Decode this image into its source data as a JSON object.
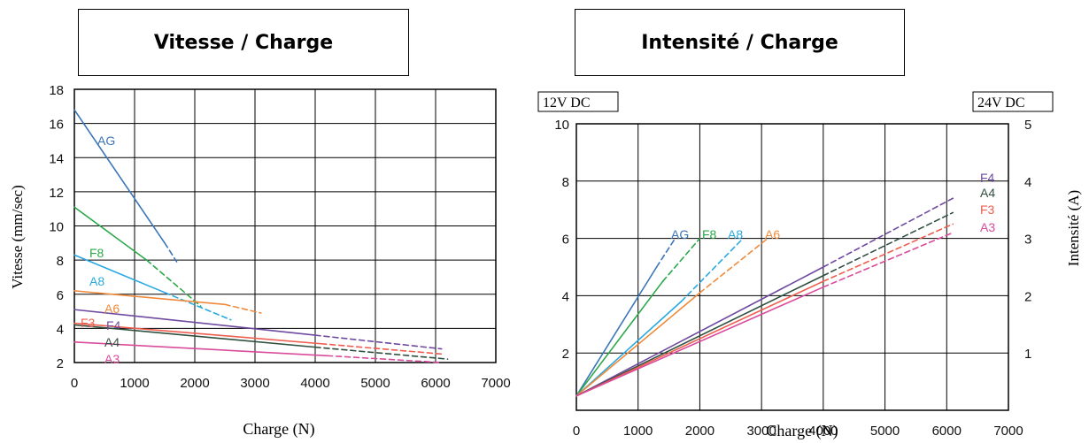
{
  "chart_data": [
    {
      "type": "line",
      "title": "Vitesse / Charge",
      "xlabel": "Charge (N)",
      "ylabel": "Vitesse (mm/sec)",
      "xlim": [
        0,
        7000
      ],
      "ylim": [
        2,
        18
      ],
      "x_ticks": [
        0,
        1000,
        2000,
        3000,
        4000,
        5000,
        6000,
        7000
      ],
      "y_ticks": [
        2,
        4,
        6,
        8,
        10,
        12,
        14,
        16,
        18
      ],
      "grid": true,
      "series": [
        {
          "name": "AG",
          "color": "#3b76b8",
          "solid": [
            [
              0,
              16.8
            ],
            [
              1500,
              9.0
            ]
          ],
          "dashed": [
            [
              1500,
              9.0
            ],
            [
              1700,
              7.9
            ]
          ]
        },
        {
          "name": "F8",
          "color": "#2ba84a",
          "solid": [
            [
              0,
              11.1
            ],
            [
              1200,
              8.0
            ]
          ],
          "dashed": [
            [
              1200,
              8.0
            ],
            [
              2100,
              5.3
            ]
          ]
        },
        {
          "name": "A8",
          "color": "#29a9e0",
          "solid": [
            [
              0,
              8.3
            ],
            [
              1500,
              6.1
            ]
          ],
          "dashed": [
            [
              1500,
              6.1
            ],
            [
              2600,
              4.5
            ]
          ]
        },
        {
          "name": "A6",
          "color": "#ef8a3c",
          "solid": [
            [
              0,
              6.2
            ],
            [
              2500,
              5.4
            ]
          ],
          "dashed": [
            [
              2500,
              5.4
            ],
            [
              3100,
              4.9
            ]
          ]
        },
        {
          "name": "F4",
          "color": "#6f4aa0",
          "solid": [
            [
              0,
              5.1
            ],
            [
              4000,
              3.6
            ]
          ],
          "dashed": [
            [
              4000,
              3.6
            ],
            [
              6100,
              2.8
            ]
          ]
        },
        {
          "name": "F3",
          "color": "#ee5d4e",
          "solid": [
            [
              0,
              4.3
            ],
            [
              4100,
              3.1
            ]
          ],
          "dashed": [
            [
              4100,
              3.1
            ],
            [
              6100,
              2.5
            ]
          ]
        },
        {
          "name": "A4",
          "color": "#2f4f3f",
          "solid": [
            [
              0,
              4.2
            ],
            [
              4000,
              2.9
            ]
          ],
          "dashed": [
            [
              4000,
              2.9
            ],
            [
              6200,
              2.2
            ]
          ]
        },
        {
          "name": "A3",
          "color": "#d94b9b",
          "solid": [
            [
              0,
              3.2
            ],
            [
              4200,
              2.4
            ]
          ],
          "dashed": [
            [
              4200,
              2.4
            ],
            [
              6100,
              2.0
            ]
          ]
        }
      ]
    },
    {
      "type": "line",
      "title": "Intensité / Charge",
      "xlabel": "Charge (N)",
      "ylabel_right": "Intensité (A)",
      "left_axis_caption": "12V DC",
      "right_axis_caption": "24V DC",
      "xlim": [
        0,
        7000
      ],
      "ylim": [
        0,
        10
      ],
      "ylim_right": [
        0,
        5
      ],
      "x_ticks": [
        0,
        1000,
        2000,
        3000,
        4000,
        5000,
        6000,
        7000
      ],
      "y_ticks": [
        2,
        4,
        6,
        8,
        10
      ],
      "y_ticks_right": [
        1,
        2,
        3,
        4,
        5
      ],
      "grid": true,
      "series": [
        {
          "name": "AG",
          "color": "#3b76b8",
          "solid": [
            [
              0,
              0.5
            ],
            [
              1300,
              5.0
            ]
          ],
          "dashed": [
            [
              1300,
              5.0
            ],
            [
              1600,
              6.0
            ]
          ]
        },
        {
          "name": "F8",
          "color": "#2ba84a",
          "solid": [
            [
              0,
              0.5
            ],
            [
              1400,
              4.5
            ]
          ],
          "dashed": [
            [
              1400,
              4.5
            ],
            [
              2000,
              6.0
            ]
          ]
        },
        {
          "name": "A8",
          "color": "#29a9e0",
          "solid": [
            [
              0,
              0.5
            ],
            [
              1700,
              3.8
            ]
          ],
          "dashed": [
            [
              1700,
              3.8
            ],
            [
              2700,
              6.0
            ]
          ]
        },
        {
          "name": "A6",
          "color": "#ef8a3c",
          "solid": [
            [
              0,
              0.5
            ],
            [
              2000,
              4.1
            ]
          ],
          "dashed": [
            [
              2000,
              4.1
            ],
            [
              3100,
              6.0
            ]
          ]
        },
        {
          "name": "F4",
          "color": "#6f4aa0",
          "solid": [
            [
              0,
              0.5
            ],
            [
              4000,
              5.0
            ]
          ],
          "dashed": [
            [
              4000,
              5.0
            ],
            [
              6100,
              7.4
            ]
          ]
        },
        {
          "name": "A4",
          "color": "#2f4f3f",
          "solid": [
            [
              0,
              0.5
            ],
            [
              4000,
              4.7
            ]
          ],
          "dashed": [
            [
              4000,
              4.7
            ],
            [
              6100,
              6.9
            ]
          ]
        },
        {
          "name": "F3",
          "color": "#ee5d4e",
          "solid": [
            [
              0,
              0.5
            ],
            [
              4000,
              4.5
            ]
          ],
          "dashed": [
            [
              4000,
              4.5
            ],
            [
              6100,
              6.5
            ]
          ]
        },
        {
          "name": "A3",
          "color": "#d94b9b",
          "solid": [
            [
              0,
              0.5
            ],
            [
              4000,
              4.3
            ]
          ],
          "dashed": [
            [
              4000,
              4.3
            ],
            [
              6100,
              6.2
            ]
          ]
        }
      ]
    }
  ]
}
